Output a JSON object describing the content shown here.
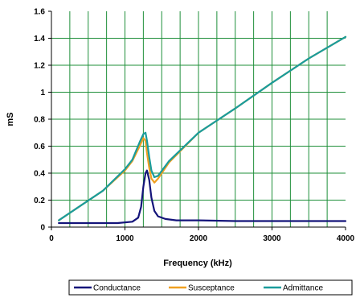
{
  "chart_data": {
    "type": "line",
    "xlabel": "Frequency (kHz)",
    "ylabel": "mS",
    "xlim": [
      0,
      4000
    ],
    "ylim": [
      0,
      1.6
    ],
    "x_ticks": [
      "0",
      "1000",
      "2000",
      "3000",
      "4000"
    ],
    "y_ticks": [
      "0",
      "0.2",
      "0.4",
      "0.6",
      "0.8",
      "1",
      "1.2",
      "1.4",
      "1.6"
    ],
    "grid": true,
    "legend_position": "bottom",
    "plot_background": "#ffffff",
    "grid_color": "#1f8f3a",
    "series": [
      {
        "name": "Conductance",
        "color": "#14147a",
        "x": [
          100,
          500,
          900,
          1100,
          1180,
          1220,
          1250,
          1280,
          1300,
          1330,
          1360,
          1400,
          1450,
          1550,
          1700,
          2000,
          2500,
          3000,
          3500,
          4000
        ],
        "y": [
          0.03,
          0.03,
          0.03,
          0.04,
          0.07,
          0.15,
          0.3,
          0.4,
          0.42,
          0.35,
          0.22,
          0.12,
          0.08,
          0.06,
          0.05,
          0.05,
          0.045,
          0.045,
          0.045,
          0.045
        ]
      },
      {
        "name": "Susceptance",
        "color": "#f0a020",
        "x": [
          100,
          400,
          700,
          1000,
          1100,
          1200,
          1250,
          1280,
          1300,
          1330,
          1360,
          1400,
          1450,
          1600,
          2000,
          2500,
          3000,
          3500,
          4000
        ],
        "y": [
          0.05,
          0.16,
          0.27,
          0.42,
          0.49,
          0.6,
          0.66,
          0.64,
          0.55,
          0.44,
          0.36,
          0.33,
          0.36,
          0.48,
          0.7,
          0.88,
          1.07,
          1.25,
          1.41
        ]
      },
      {
        "name": "Admittance",
        "color": "#1a9c9c",
        "x": [
          100,
          400,
          700,
          1000,
          1100,
          1200,
          1250,
          1280,
          1300,
          1330,
          1360,
          1400,
          1450,
          1600,
          2000,
          2500,
          3000,
          3500,
          4000
        ],
        "y": [
          0.05,
          0.16,
          0.27,
          0.43,
          0.5,
          0.63,
          0.69,
          0.7,
          0.64,
          0.52,
          0.42,
          0.37,
          0.38,
          0.49,
          0.7,
          0.88,
          1.07,
          1.25,
          1.41
        ]
      }
    ]
  }
}
